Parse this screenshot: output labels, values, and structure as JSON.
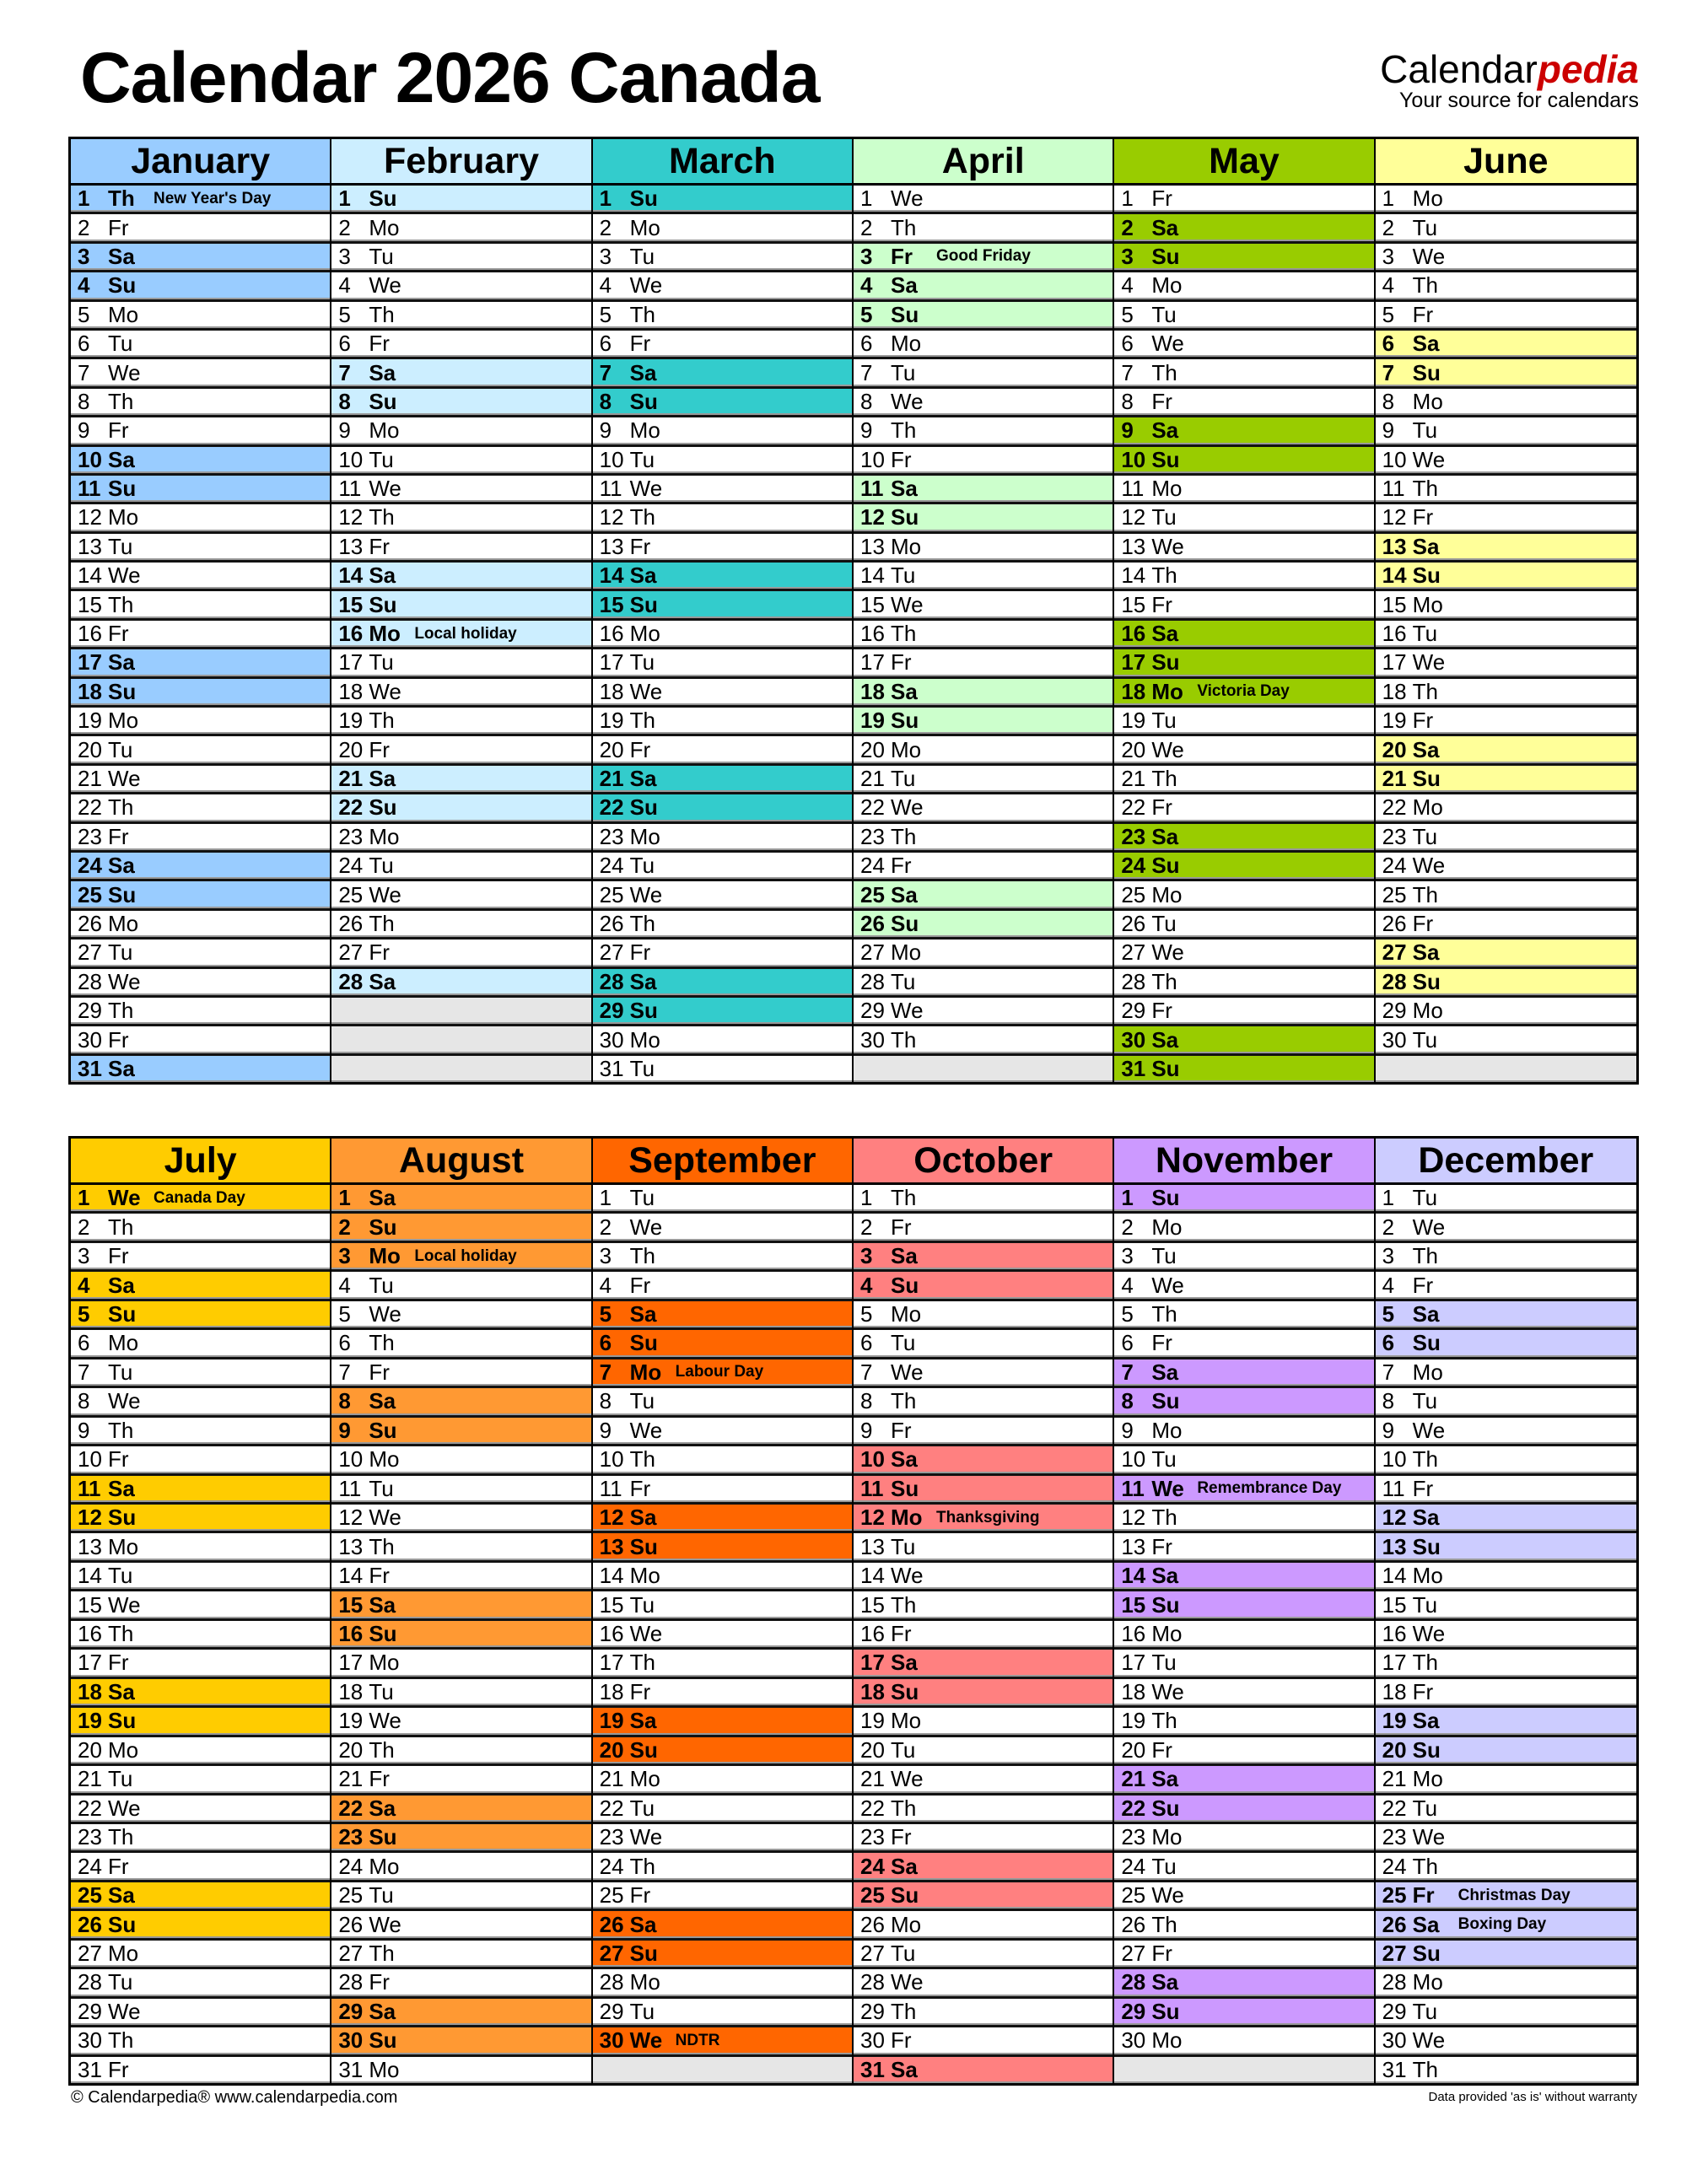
{
  "title": "Calendar 2026 Canada",
  "logo": {
    "brand_main": "Calendar",
    "brand_accent": "pedia",
    "tagline": "Your source for calendars"
  },
  "footer": {
    "left": "© Calendarpedia®   www.calendarpedia.com",
    "right": "Data provided 'as is' without warranty"
  },
  "colors": {
    "empty_cell": "#e6e6e6",
    "brand_accent": "#cc0000"
  },
  "months": [
    {
      "name": "January",
      "color": "#99ccff",
      "holidays": {
        "1": "New Year's Day"
      },
      "days": [
        "1 Th",
        "2 Fr",
        "3 Sa",
        "4 Su",
        "5 Mo",
        "6 Tu",
        "7 We",
        "8 Th",
        "9 Fr",
        "10 Sa",
        "11 Su",
        "12 Mo",
        "13 Tu",
        "14 We",
        "15 Th",
        "16 Fr",
        "17 Sa",
        "18 Su",
        "19 Mo",
        "20 Tu",
        "21 We",
        "22 Th",
        "23 Fr",
        "24 Sa",
        "25 Su",
        "26 Mo",
        "27 Tu",
        "28 We",
        "29 Th",
        "30 Fr",
        "31 Sa"
      ]
    },
    {
      "name": "February",
      "color": "#cceeff",
      "holidays": {
        "16": "Local holiday"
      },
      "days": [
        "1 Su",
        "2 Mo",
        "3 Tu",
        "4 We",
        "5 Th",
        "6 Fr",
        "7 Sa",
        "8 Su",
        "9 Mo",
        "10 Tu",
        "11 We",
        "12 Th",
        "13 Fr",
        "14 Sa",
        "15 Su",
        "16 Mo",
        "17 Tu",
        "18 We",
        "19 Th",
        "20 Fr",
        "21 Sa",
        "22 Su",
        "23 Mo",
        "24 Tu",
        "25 We",
        "26 Th",
        "27 Fr",
        "28 Sa"
      ]
    },
    {
      "name": "March",
      "color": "#33cccc",
      "holidays": {},
      "days": [
        "1 Su",
        "2 Mo",
        "3 Tu",
        "4 We",
        "5 Th",
        "6 Fr",
        "7 Sa",
        "8 Su",
        "9 Mo",
        "10 Tu",
        "11 We",
        "12 Th",
        "13 Fr",
        "14 Sa",
        "15 Su",
        "16 Mo",
        "17 Tu",
        "18 We",
        "19 Th",
        "20 Fr",
        "21 Sa",
        "22 Su",
        "23 Mo",
        "24 Tu",
        "25 We",
        "26 Th",
        "27 Fr",
        "28 Sa",
        "29 Su",
        "30 Mo",
        "31 Tu"
      ]
    },
    {
      "name": "April",
      "color": "#ccffcc",
      "holidays": {
        "3": "Good Friday"
      },
      "days": [
        "1 We",
        "2 Th",
        "3 Fr",
        "4 Sa",
        "5 Su",
        "6 Mo",
        "7 Tu",
        "8 We",
        "9 Th",
        "10 Fr",
        "11 Sa",
        "12 Su",
        "13 Mo",
        "14 Tu",
        "15 We",
        "16 Th",
        "17 Fr",
        "18 Sa",
        "19 Su",
        "20 Mo",
        "21 Tu",
        "22 We",
        "23 Th",
        "24 Fr",
        "25 Sa",
        "26 Su",
        "27 Mo",
        "28 Tu",
        "29 We",
        "30 Th"
      ]
    },
    {
      "name": "May",
      "color": "#99cc00",
      "holidays": {
        "18": "Victoria Day"
      },
      "days": [
        "1 Fr",
        "2 Sa",
        "3 Su",
        "4 Mo",
        "5 Tu",
        "6 We",
        "7 Th",
        "8 Fr",
        "9 Sa",
        "10 Su",
        "11 Mo",
        "12 Tu",
        "13 We",
        "14 Th",
        "15 Fr",
        "16 Sa",
        "17 Su",
        "18 Mo",
        "19 Tu",
        "20 We",
        "21 Th",
        "22 Fr",
        "23 Sa",
        "24 Su",
        "25 Mo",
        "26 Tu",
        "27 We",
        "28 Th",
        "29 Fr",
        "30 Sa",
        "31 Su"
      ]
    },
    {
      "name": "June",
      "color": "#ffff99",
      "holidays": {},
      "days": [
        "1 Mo",
        "2 Tu",
        "3 We",
        "4 Th",
        "5 Fr",
        "6 Sa",
        "7 Su",
        "8 Mo",
        "9 Tu",
        "10 We",
        "11 Th",
        "12 Fr",
        "13 Sa",
        "14 Su",
        "15 Mo",
        "16 Tu",
        "17 We",
        "18 Th",
        "19 Fr",
        "20 Sa",
        "21 Su",
        "22 Mo",
        "23 Tu",
        "24 We",
        "25 Th",
        "26 Fr",
        "27 Sa",
        "28 Su",
        "29 Mo",
        "30 Tu"
      ]
    },
    {
      "name": "July",
      "color": "#ffcc00",
      "holidays": {
        "1": "Canada Day"
      },
      "days": [
        "1 We",
        "2 Th",
        "3 Fr",
        "4 Sa",
        "5 Su",
        "6 Mo",
        "7 Tu",
        "8 We",
        "9 Th",
        "10 Fr",
        "11 Sa",
        "12 Su",
        "13 Mo",
        "14 Tu",
        "15 We",
        "16 Th",
        "17 Fr",
        "18 Sa",
        "19 Su",
        "20 Mo",
        "21 Tu",
        "22 We",
        "23 Th",
        "24 Fr",
        "25 Sa",
        "26 Su",
        "27 Mo",
        "28 Tu",
        "29 We",
        "30 Th",
        "31 Fr"
      ]
    },
    {
      "name": "August",
      "color": "#ff9933",
      "holidays": {
        "3": "Local holiday"
      },
      "days": [
        "1 Sa",
        "2 Su",
        "3 Mo",
        "4 Tu",
        "5 We",
        "6 Th",
        "7 Fr",
        "8 Sa",
        "9 Su",
        "10 Mo",
        "11 Tu",
        "12 We",
        "13 Th",
        "14 Fr",
        "15 Sa",
        "16 Su",
        "17 Mo",
        "18 Tu",
        "19 We",
        "20 Th",
        "21 Fr",
        "22 Sa",
        "23 Su",
        "24 Mo",
        "25 Tu",
        "26 We",
        "27 Th",
        "28 Fr",
        "29 Sa",
        "30 Su",
        "31 Mo"
      ]
    },
    {
      "name": "September",
      "color": "#ff6600",
      "holidays": {
        "7": "Labour Day",
        "30": "NDTR"
      },
      "days": [
        "1 Tu",
        "2 We",
        "3 Th",
        "4 Fr",
        "5 Sa",
        "6 Su",
        "7 Mo",
        "8 Tu",
        "9 We",
        "10 Th",
        "11 Fr",
        "12 Sa",
        "13 Su",
        "14 Mo",
        "15 Tu",
        "16 We",
        "17 Th",
        "18 Fr",
        "19 Sa",
        "20 Su",
        "21 Mo",
        "22 Tu",
        "23 We",
        "24 Th",
        "25 Fr",
        "26 Sa",
        "27 Su",
        "28 Mo",
        "29 Tu",
        "30 We"
      ]
    },
    {
      "name": "October",
      "color": "#ff8080",
      "holidays": {
        "12": "Thanksgiving"
      },
      "days": [
        "1 Th",
        "2 Fr",
        "3 Sa",
        "4 Su",
        "5 Mo",
        "6 Tu",
        "7 We",
        "8 Th",
        "9 Fr",
        "10 Sa",
        "11 Su",
        "12 Mo",
        "13 Tu",
        "14 We",
        "15 Th",
        "16 Fr",
        "17 Sa",
        "18 Su",
        "19 Mo",
        "20 Tu",
        "21 We",
        "22 Th",
        "23 Fr",
        "24 Sa",
        "25 Su",
        "26 Mo",
        "27 Tu",
        "28 We",
        "29 Th",
        "30 Fr",
        "31 Sa"
      ]
    },
    {
      "name": "November",
      "color": "#cc99ff",
      "holidays": {
        "11": "Remembrance Day"
      },
      "days": [
        "1 Su",
        "2 Mo",
        "3 Tu",
        "4 We",
        "5 Th",
        "6 Fr",
        "7 Sa",
        "8 Su",
        "9 Mo",
        "10 Tu",
        "11 We",
        "12 Th",
        "13 Fr",
        "14 Sa",
        "15 Su",
        "16 Mo",
        "17 Tu",
        "18 We",
        "19 Th",
        "20 Fr",
        "21 Sa",
        "22 Su",
        "23 Mo",
        "24 Tu",
        "25 We",
        "26 Th",
        "27 Fr",
        "28 Sa",
        "29 Su",
        "30 Mo"
      ]
    },
    {
      "name": "December",
      "color": "#ccccff",
      "holidays": {
        "25": "Christmas Day",
        "26": "Boxing Day"
      },
      "days": [
        "1 Tu",
        "2 We",
        "3 Th",
        "4 Fr",
        "5 Sa",
        "6 Su",
        "7 Mo",
        "8 Tu",
        "9 We",
        "10 Th",
        "11 Fr",
        "12 Sa",
        "13 Su",
        "14 Mo",
        "15 Tu",
        "16 We",
        "17 Th",
        "18 Fr",
        "19 Sa",
        "20 Su",
        "21 Mo",
        "22 Tu",
        "23 We",
        "24 Th",
        "25 Fr",
        "26 Sa",
        "27 Su",
        "28 Mo",
        "29 Tu",
        "30 We",
        "31 Th"
      ]
    }
  ]
}
